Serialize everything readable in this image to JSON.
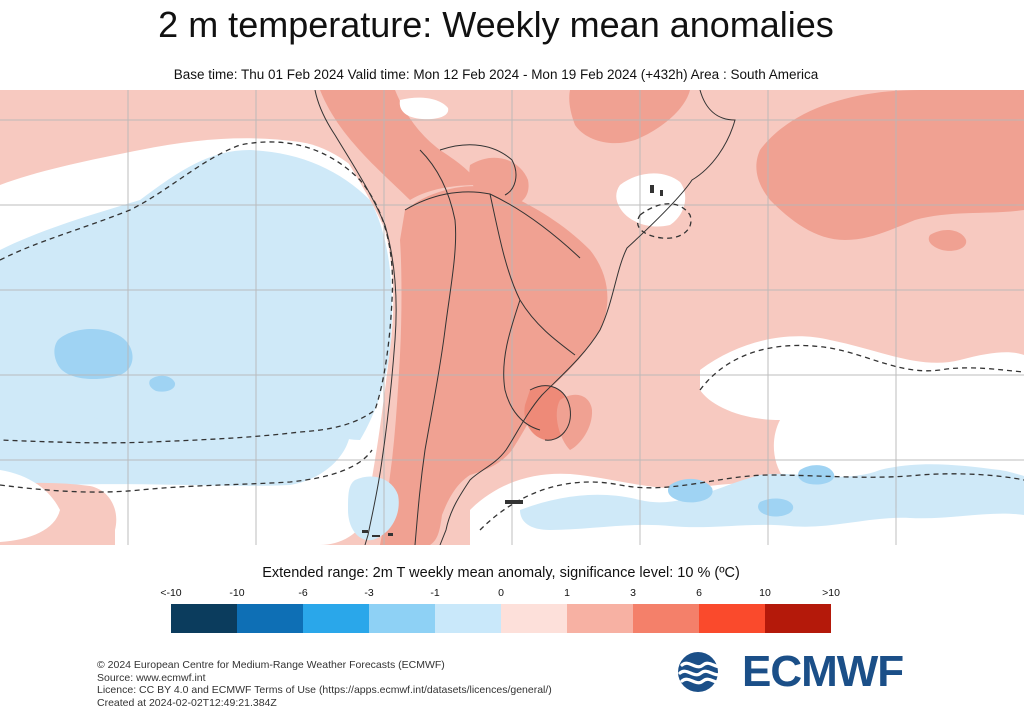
{
  "header": {
    "title": "2 m temperature: Weekly mean anomalies",
    "subtitle": "Base time: Thu 01 Feb 2024 Valid time: Mon 12 Feb 2024 - Mon 19 Feb 2024 (+432h) Area : South America"
  },
  "legend": {
    "caption": "Extended range: 2m T weekly mean anomaly, significance level: 10 % (ºC)",
    "ticks": [
      "<-10",
      "-10",
      "-6",
      "-3",
      "-1",
      "0",
      "1",
      "3",
      "6",
      "10",
      ">10"
    ],
    "colors": [
      "#0b3c5d",
      "#0e6fb5",
      "#2aa7ea",
      "#8ed1f5",
      "#c9e8fa",
      "#fde0da",
      "#f7b1a3",
      "#f4806a",
      "#fa4a2c",
      "#b4190a",
      "#5a0b06"
    ]
  },
  "map_colors": {
    "ocean_near_normal": "#f7c9c0",
    "cold_weak": "#cfe9f8",
    "cold_moderate": "#9fd3f3",
    "warm_moderate": "#f0a192",
    "warm_strong": "#ee8a78",
    "neutral": "#ffffff"
  },
  "footer": {
    "copyright": "© 2024 European Centre for Medium-Range Weather Forecasts (ECMWF)",
    "source": "Source: www.ecmwf.int",
    "licence": "Licence: CC BY 4.0 and ECMWF Terms of Use (https://apps.ecmwf.int/datasets/licences/general/)",
    "created": "Created at 2024-02-02T12:49:21.384Z"
  },
  "logo": {
    "text": "ECMWF",
    "icon": "ecmwf-logo-icon",
    "color": "#1b4f88"
  }
}
